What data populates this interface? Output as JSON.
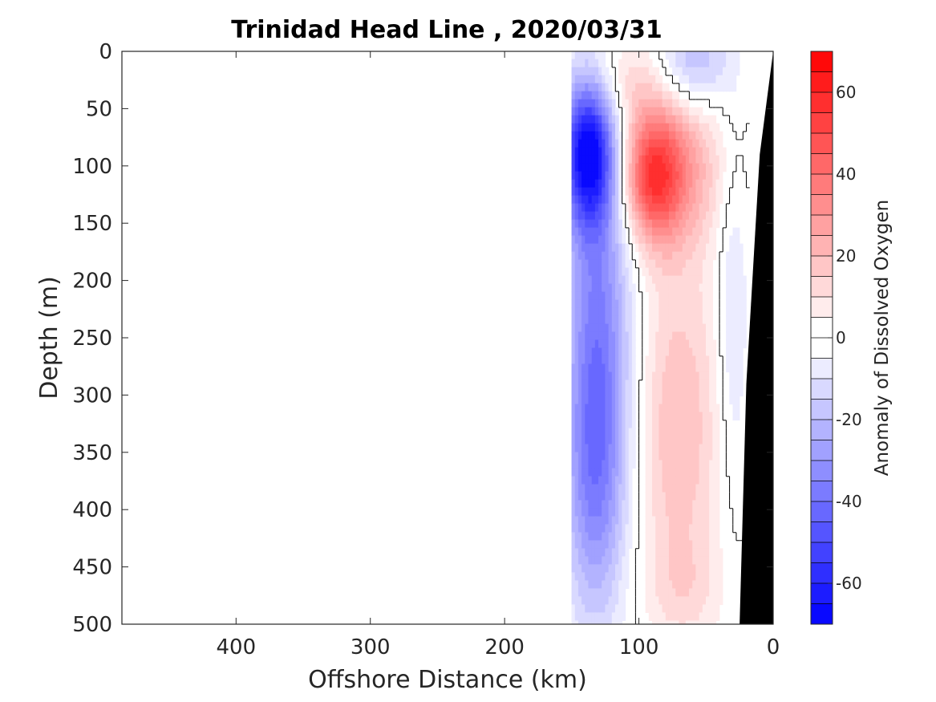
{
  "chart_data": {
    "type": "heatmap",
    "title": "Trinidad Head Line , 2020/03/31",
    "xlabel": "Offshore Distance (km)",
    "ylabel": "Depth (m)",
    "colorbar_label": "Anomaly of Dissolved Oxygen",
    "xlim": [
      485,
      0
    ],
    "ylim": [
      500,
      0
    ],
    "x_ticks": [
      400,
      300,
      200,
      100,
      0
    ],
    "y_ticks": [
      0,
      50,
      100,
      150,
      200,
      250,
      300,
      350,
      400,
      450,
      500
    ],
    "colorbar_range": [
      -70,
      70
    ],
    "colorbar_step": 5,
    "colorbar_ticks": [
      60,
      40,
      20,
      0,
      -20,
      -40,
      -60
    ],
    "colormap": {
      "negative": "#0000ff",
      "zero": "#ffffff",
      "positive": "#ff0000"
    },
    "bathymetry_color": "#000000",
    "data_extent_km": [
      150,
      20
    ],
    "anomaly_features": [
      {
        "kind": "min",
        "distance_km": 138,
        "depth_m": 88,
        "value": -60,
        "spread_km": 14,
        "spread_m": 45
      },
      {
        "kind": "min",
        "distance_km": 130,
        "depth_m": 230,
        "value": -32,
        "spread_km": 18,
        "spread_m": 130
      },
      {
        "kind": "min",
        "distance_km": 133,
        "depth_m": 380,
        "value": -24,
        "spread_km": 16,
        "spread_m": 90
      },
      {
        "kind": "min",
        "distance_km": 60,
        "depth_m": 10,
        "value": -22,
        "spread_km": 20,
        "spread_m": 30
      },
      {
        "kind": "min",
        "distance_km": 30,
        "depth_m": 230,
        "value": -12,
        "spread_km": 8,
        "spread_m": 110
      },
      {
        "kind": "max",
        "distance_km": 90,
        "depth_m": 110,
        "value": 42,
        "spread_km": 16,
        "spread_m": 40
      },
      {
        "kind": "max",
        "distance_km": 70,
        "depth_m": 100,
        "value": 22,
        "spread_km": 25,
        "spread_m": 50
      },
      {
        "kind": "max",
        "distance_km": 110,
        "depth_m": 25,
        "value": 14,
        "spread_km": 22,
        "spread_m": 30
      },
      {
        "kind": "max",
        "distance_km": 70,
        "depth_m": 330,
        "value": 20,
        "spread_km": 22,
        "spread_m": 110
      },
      {
        "kind": "max",
        "distance_km": 65,
        "depth_m": 470,
        "value": 7,
        "spread_km": 20,
        "spread_m": 30
      }
    ],
    "bathymetry_profile": [
      {
        "distance_km": 0,
        "depth_m": 0
      },
      {
        "distance_km": 10,
        "depth_m": 90
      },
      {
        "distance_km": 20,
        "depth_m": 290
      },
      {
        "distance_km": 25,
        "depth_m": 500
      }
    ]
  }
}
